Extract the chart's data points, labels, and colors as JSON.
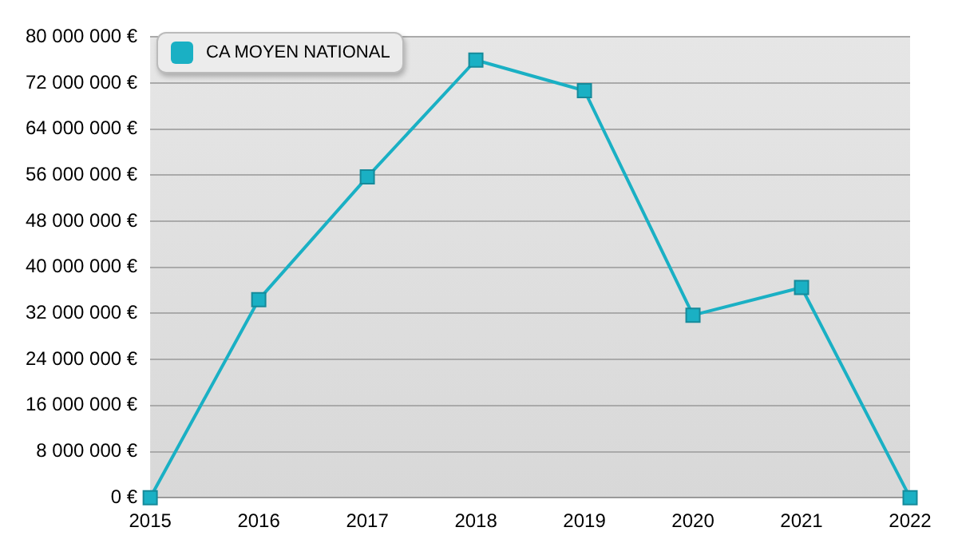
{
  "chart_data": {
    "type": "line",
    "categories": [
      "2015",
      "2016",
      "2017",
      "2018",
      "2019",
      "2020",
      "2021",
      "2022"
    ],
    "series": [
      {
        "name": "CA MOYEN NATIONAL",
        "color": "#1ab0c4",
        "values": [
          0,
          34400000,
          55700000,
          76000000,
          70700000,
          31700000,
          36500000,
          0
        ]
      }
    ],
    "ylim": [
      0,
      80000000
    ],
    "yticks": [
      {
        "value": 0,
        "label": "0 €"
      },
      {
        "value": 8000000,
        "label": "8 000 000 €"
      },
      {
        "value": 16000000,
        "label": "16 000 000 €"
      },
      {
        "value": 24000000,
        "label": "24 000 000 €"
      },
      {
        "value": 32000000,
        "label": "32 000 000 €"
      },
      {
        "value": 40000000,
        "label": "40 000 000 €"
      },
      {
        "value": 48000000,
        "label": "48 000 000 €"
      },
      {
        "value": 56000000,
        "label": "56 000 000 €"
      },
      {
        "value": 64000000,
        "label": "64 000 000 €"
      },
      {
        "value": 72000000,
        "label": "72 000 000 €"
      },
      {
        "value": 80000000,
        "label": "80 000 000 €"
      }
    ],
    "grid": "y",
    "legend": "top left",
    "marker": "square",
    "line_style": "solid"
  }
}
